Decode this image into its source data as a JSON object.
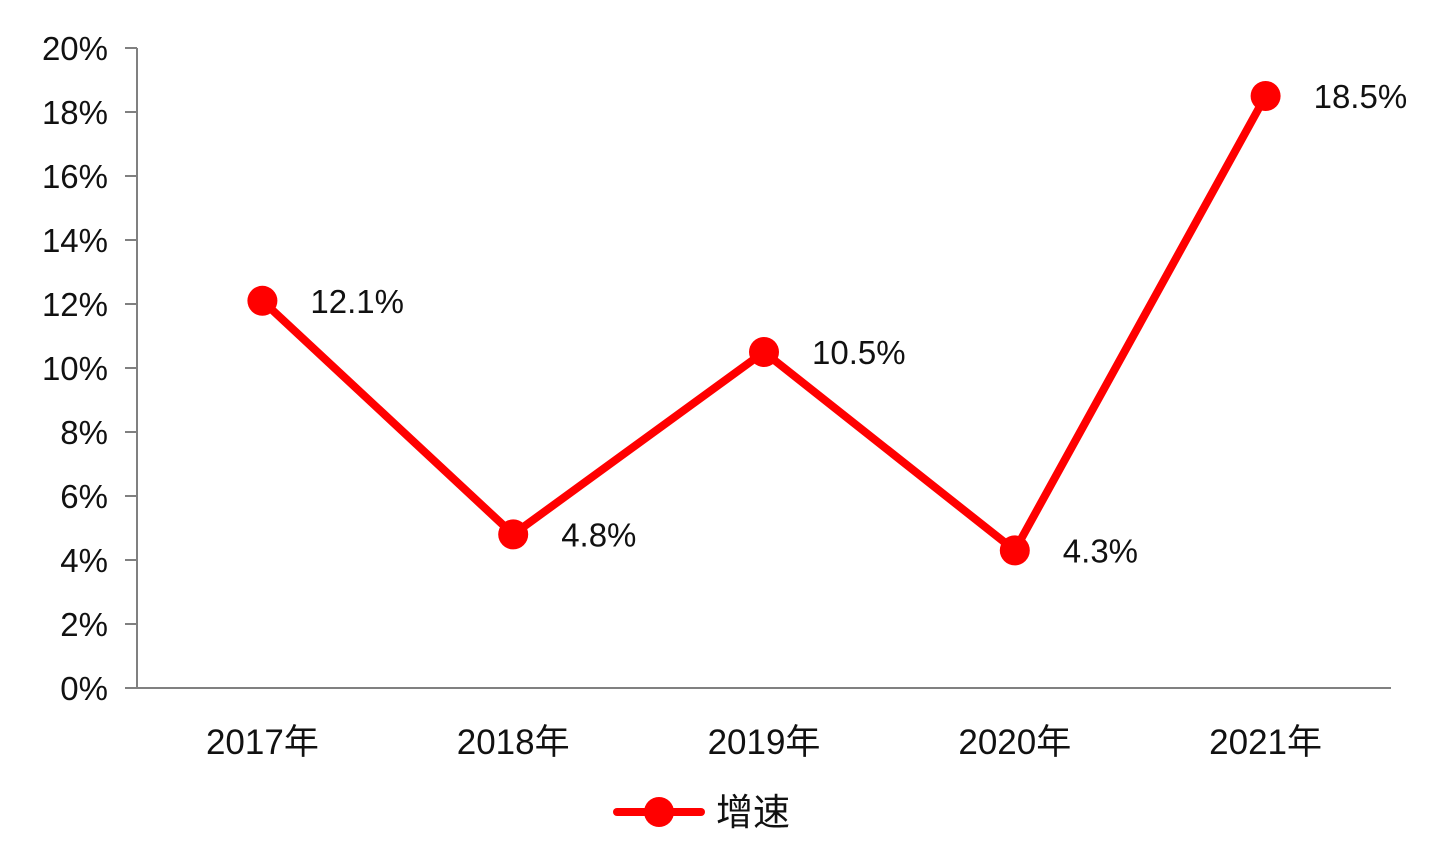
{
  "chart_data": {
    "type": "line",
    "categories": [
      "2017年",
      "2018年",
      "2019年",
      "2020年",
      "2021年"
    ],
    "series": [
      {
        "name": "增速",
        "values": [
          12.1,
          4.8,
          10.5,
          4.3,
          18.5
        ],
        "data_labels": [
          "12.1%",
          "4.8%",
          "10.5%",
          "4.3%",
          "18.5%"
        ],
        "color": "#ff0000"
      }
    ],
    "y_ticks": [
      0,
      2,
      4,
      6,
      8,
      10,
      12,
      14,
      16,
      18,
      20
    ],
    "y_tick_labels": [
      "0%",
      "2%",
      "4%",
      "6%",
      "8%",
      "10%",
      "12%",
      "14%",
      "16%",
      "18%",
      "20%"
    ],
    "ylim": [
      0,
      20
    ],
    "grid": false,
    "legend_position": "bottom",
    "axis_color": "#808080"
  }
}
